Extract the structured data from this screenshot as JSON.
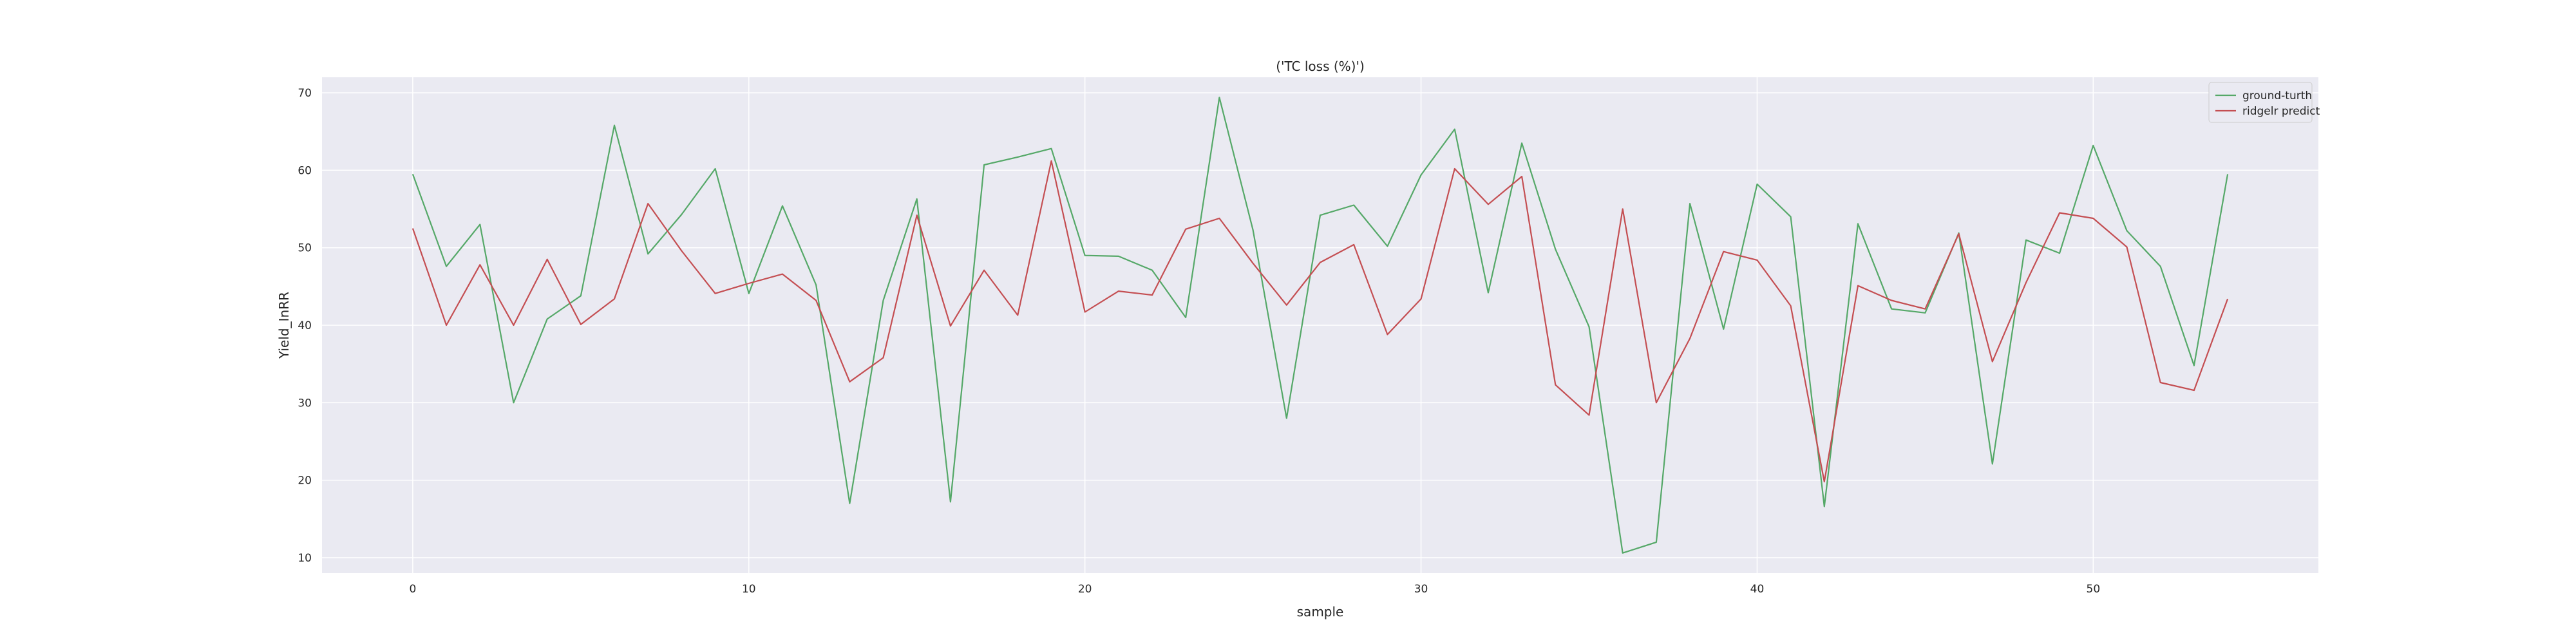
{
  "chart_data": {
    "type": "line",
    "title": "('TC loss (%)')",
    "xlabel": "sample",
    "ylabel": "Yield_InRR",
    "xlim": [
      -2.7,
      56.7
    ],
    "ylim": [
      8,
      72
    ],
    "xticks": [
      0,
      10,
      20,
      30,
      40,
      50
    ],
    "yticks": [
      10,
      20,
      30,
      40,
      50,
      60,
      70
    ],
    "grid": true,
    "legend_position": "top-right",
    "x": [
      0,
      1,
      2,
      3,
      4,
      5,
      6,
      7,
      8,
      9,
      10,
      11,
      12,
      13,
      14,
      15,
      16,
      17,
      18,
      19,
      20,
      21,
      22,
      23,
      24,
      25,
      26,
      27,
      28,
      29,
      30,
      31,
      32,
      33,
      34,
      35,
      36,
      37,
      38,
      39,
      40,
      41,
      42,
      43,
      44,
      45,
      46,
      47,
      48,
      49,
      50,
      51,
      52,
      53,
      54
    ],
    "series": [
      {
        "name": "ground-turth",
        "color": "#55a868",
        "values": [
          59.5,
          47.6,
          53.0,
          30.0,
          40.8,
          43.8,
          65.8,
          49.2,
          54.3,
          60.2,
          44.1,
          55.4,
          45.2,
          17.0,
          43.2,
          56.3,
          17.2,
          60.7,
          61.7,
          62.8,
          49.0,
          48.9,
          47.1,
          41.0,
          69.4,
          52.3,
          28.0,
          54.2,
          55.5,
          50.2,
          59.4,
          65.3,
          44.2,
          63.5,
          49.8,
          39.8,
          10.6,
          12.0,
          55.7,
          39.5,
          58.2,
          54.0,
          16.6,
          53.1,
          42.1,
          41.6,
          51.9,
          22.1,
          51.0,
          49.3,
          63.2,
          52.2,
          47.6,
          34.8,
          59.5
        ]
      },
      {
        "name": "ridgelr predict",
        "color": "#c44e52",
        "values": [
          52.5,
          40.0,
          47.8,
          40.0,
          48.5,
          40.1,
          43.4,
          55.7,
          49.6,
          44.1,
          45.4,
          46.6,
          43.2,
          32.7,
          35.8,
          54.2,
          39.9,
          47.1,
          41.3,
          61.2,
          41.7,
          44.4,
          43.9,
          52.4,
          53.8,
          48.0,
          42.6,
          48.1,
          50.4,
          38.8,
          43.4,
          60.2,
          55.6,
          59.2,
          32.3,
          28.4,
          55.0,
          30.0,
          38.3,
          49.5,
          48.4,
          42.5,
          19.8,
          45.1,
          43.2,
          42.1,
          51.8,
          35.3,
          45.5,
          54.5,
          53.8,
          50.1,
          32.6,
          31.6,
          43.4
        ]
      }
    ]
  },
  "colors": {
    "plot_background": "#eaeaf2",
    "grid": "#ffffff",
    "text": "#262626"
  }
}
